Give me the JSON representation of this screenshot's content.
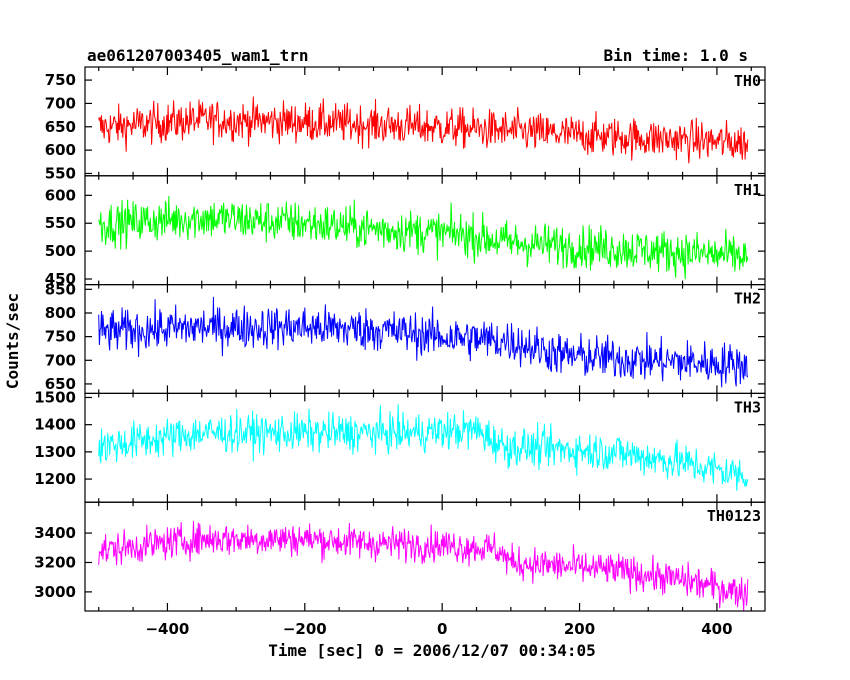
{
  "chart_data": {
    "type": "line",
    "title": "ae061207003405_wam1_trn",
    "subtitle": "Bin time: 1.0 s",
    "xlabel": "Time [sec] 0 = 2006/12/07 00:34:05",
    "ylabel": "Counts/sec",
    "xlim": [
      -520,
      470
    ],
    "xticks": [
      -400,
      -200,
      0,
      200,
      400
    ],
    "x_range_data": [
      -500,
      445
    ],
    "grid": false,
    "panels": [
      {
        "name": "TH0",
        "color": "#ff0000",
        "ylim": [
          545,
          778
        ],
        "yticks": [
          550,
          600,
          650,
          700,
          750
        ],
        "trend": [
          [
            -500,
            648
          ],
          [
            -350,
            665
          ],
          [
            -200,
            660
          ],
          [
            -100,
            655
          ],
          [
            50,
            645
          ],
          [
            200,
            632
          ],
          [
            350,
            622
          ],
          [
            445,
            615
          ]
        ],
        "noise": 30
      },
      {
        "name": "TH1",
        "color": "#00ff00",
        "ylim": [
          440,
          635
        ],
        "yticks": [
          450,
          500,
          550,
          600
        ],
        "trend": [
          [
            -500,
            548
          ],
          [
            -350,
            560
          ],
          [
            -200,
            550
          ],
          [
            -100,
            540
          ],
          [
            30,
            530
          ],
          [
            100,
            515
          ],
          [
            250,
            505
          ],
          [
            445,
            490
          ]
        ],
        "noise": 27
      },
      {
        "name": "TH2",
        "color": "#0000ff",
        "ylim": [
          630,
          860
        ],
        "yticks": [
          650,
          700,
          750,
          800,
          850
        ],
        "trend": [
          [
            -500,
            760
          ],
          [
            -350,
            770
          ],
          [
            -200,
            770
          ],
          [
            -100,
            765
          ],
          [
            0,
            750
          ],
          [
            100,
            740
          ],
          [
            180,
            710
          ],
          [
            300,
            700
          ],
          [
            445,
            690
          ]
        ],
        "noise": 32
      },
      {
        "name": "TH3",
        "color": "#00ffff",
        "ylim": [
          1115,
          1515
        ],
        "yticks": [
          1200,
          1300,
          1400,
          1500
        ],
        "trend": [
          [
            -500,
            1320
          ],
          [
            -350,
            1370
          ],
          [
            -200,
            1370
          ],
          [
            -50,
            1370
          ],
          [
            50,
            1380
          ],
          [
            90,
            1320
          ],
          [
            250,
            1300
          ],
          [
            350,
            1260
          ],
          [
            445,
            1210
          ]
        ],
        "noise": 50
      },
      {
        "name": "TH0123",
        "color": "#ff00ff",
        "ylim": [
          2870,
          3610
        ],
        "yticks": [
          3000,
          3200,
          3400
        ],
        "trend": [
          [
            -500,
            3280
          ],
          [
            -350,
            3360
          ],
          [
            -200,
            3360
          ],
          [
            -100,
            3330
          ],
          [
            0,
            3320
          ],
          [
            80,
            3290
          ],
          [
            100,
            3200
          ],
          [
            250,
            3150
          ],
          [
            350,
            3080
          ],
          [
            445,
            2990
          ]
        ],
        "noise": 80
      }
    ]
  }
}
